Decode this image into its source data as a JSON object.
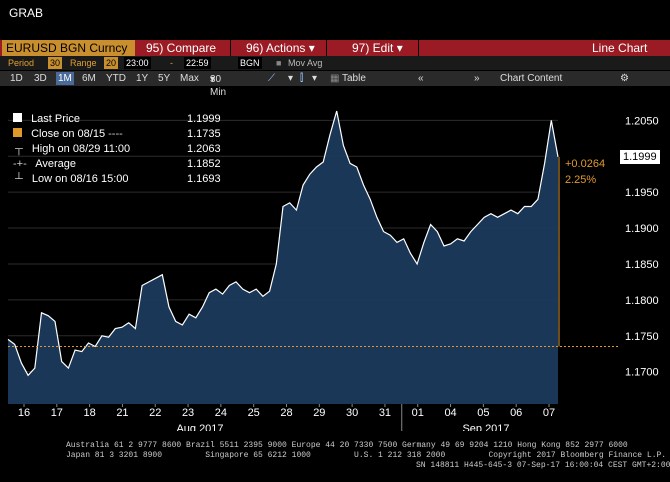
{
  "window_title": "GRAB",
  "toolbar": {
    "ticker": "EURUSD BGN Curncy",
    "compare": "95) Compare",
    "actions": "96) Actions",
    "edit": "97) Edit",
    "chart_type": "Line Chart"
  },
  "settings": {
    "period_label": "Period",
    "period_value": "30",
    "range_label": "Range",
    "range_value": "20",
    "start_time": "23:00",
    "end_time": "22:59",
    "session": "BGN",
    "mov_avg": "Mov Avg"
  },
  "range_buttons": [
    "1D",
    "3D",
    "1M",
    "6M",
    "YTD",
    "1Y",
    "5Y",
    "Max"
  ],
  "selected_range": "1M",
  "interval": "30 Min",
  "table_label": "Table",
  "chart_content_label": "Chart Content",
  "legend": {
    "last_price_label": "Last Price",
    "last_price_value": "1.1999",
    "close_label": "Close on 08/15",
    "close_value": "1.1735",
    "high_label": "High on 08/29 11:00",
    "high_value": "1.2063",
    "average_label": "Average",
    "average_value": "1.1852",
    "low_label": "Low on 08/16 15:00",
    "low_value": "1.1693"
  },
  "change_abs": "+0.0264",
  "change_pct": "2.25%",
  "last_tag": "1.1999",
  "chart_data": {
    "type": "area",
    "ylim": [
      1.1655,
      1.2095
    ],
    "yticks": [
      "1.2050",
      "1.2000",
      "1.1950",
      "1.1900",
      "1.1850",
      "1.1800",
      "1.1750",
      "1.1700"
    ],
    "ytick_values": [
      1.205,
      1.2,
      1.195,
      1.19,
      1.185,
      1.18,
      1.175,
      1.17
    ],
    "x_day_labels": [
      "16",
      "17",
      "18",
      "21",
      "22",
      "23",
      "24",
      "25",
      "28",
      "29",
      "30",
      "31",
      "01",
      "04",
      "05",
      "06",
      "07"
    ],
    "month_labels": [
      "Aug 2017",
      "Sep 2017"
    ],
    "reference_line": 1.1735,
    "series": [
      {
        "values": [
          1.1745,
          1.1738,
          1.1712,
          1.1695,
          1.1705,
          1.1782,
          1.1778,
          1.177,
          1.1714,
          1.1705,
          1.173,
          1.1728,
          1.174,
          1.1735,
          1.175,
          1.1748,
          1.176,
          1.1762,
          1.1768,
          1.176,
          1.182,
          1.1825,
          1.183,
          1.1835,
          1.179,
          1.177,
          1.1765,
          1.178,
          1.1775,
          1.179,
          1.181,
          1.1815,
          1.1808,
          1.182,
          1.1825,
          1.1815,
          1.181,
          1.1815,
          1.1805,
          1.1812,
          1.185,
          1.193,
          1.1935,
          1.1925,
          1.196,
          1.1975,
          1.1985,
          1.1992,
          1.203,
          1.2063,
          1.2015,
          1.199,
          1.1985,
          1.196,
          1.194,
          1.1915,
          1.1895,
          1.189,
          1.188,
          1.1885,
          1.1865,
          1.185,
          1.188,
          1.1905,
          1.1895,
          1.1875,
          1.1878,
          1.1885,
          1.1882,
          1.1895,
          1.1905,
          1.1915,
          1.192,
          1.1915,
          1.192,
          1.1925,
          1.192,
          1.193,
          1.193,
          1.194,
          1.199,
          1.205,
          1.1999
        ]
      }
    ]
  }
}
